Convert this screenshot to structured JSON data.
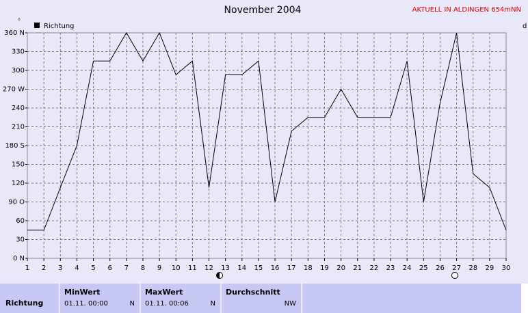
{
  "chart_data": {
    "type": "line",
    "title": "November 2004",
    "subtitle": "AKTUELL IN ALDINGEN 654mNN",
    "y_unit": "°",
    "y2_unit": "d",
    "x": [
      1,
      2,
      3,
      4,
      5,
      6,
      7,
      8,
      9,
      10,
      11,
      12,
      13,
      14,
      15,
      16,
      17,
      18,
      19,
      20,
      21,
      22,
      23,
      24,
      25,
      26,
      27,
      28,
      29,
      30
    ],
    "series": [
      {
        "name": "Richtung",
        "color": "#000000",
        "values": [
          45,
          45,
          113,
          180,
          315,
          315,
          360,
          315,
          360,
          293,
          315,
          113,
          293,
          293,
          315,
          90,
          203,
          225,
          225,
          270,
          225,
          225,
          225,
          315,
          90,
          248,
          360,
          135,
          113,
          45
        ]
      }
    ],
    "xlim": [
      1,
      30
    ],
    "xticks": [
      1,
      2,
      3,
      4,
      5,
      6,
      7,
      8,
      9,
      10,
      11,
      12,
      13,
      14,
      15,
      16,
      17,
      18,
      19,
      20,
      21,
      22,
      23,
      24,
      25,
      26,
      27,
      28,
      29,
      30
    ],
    "ylim": [
      0,
      360
    ],
    "yticks": [
      {
        "value": 0,
        "label": "0 N"
      },
      30,
      60,
      {
        "value": 90,
        "label": "90 O"
      },
      120,
      150,
      {
        "value": 180,
        "label": "180 S"
      },
      210,
      240,
      {
        "value": 270,
        "label": "270 W"
      },
      300,
      330,
      {
        "value": 360,
        "label": "360 N"
      }
    ],
    "grid": true
  },
  "stats": {
    "row_label": "Richtung",
    "columns": [
      {
        "header": "MinWert",
        "time": "01.11.  00:00",
        "value": "N"
      },
      {
        "header": "MaxWert",
        "time": "01.11.  00:06",
        "value": "N"
      },
      {
        "header": "Durchschnitt",
        "value": "NW"
      }
    ]
  }
}
